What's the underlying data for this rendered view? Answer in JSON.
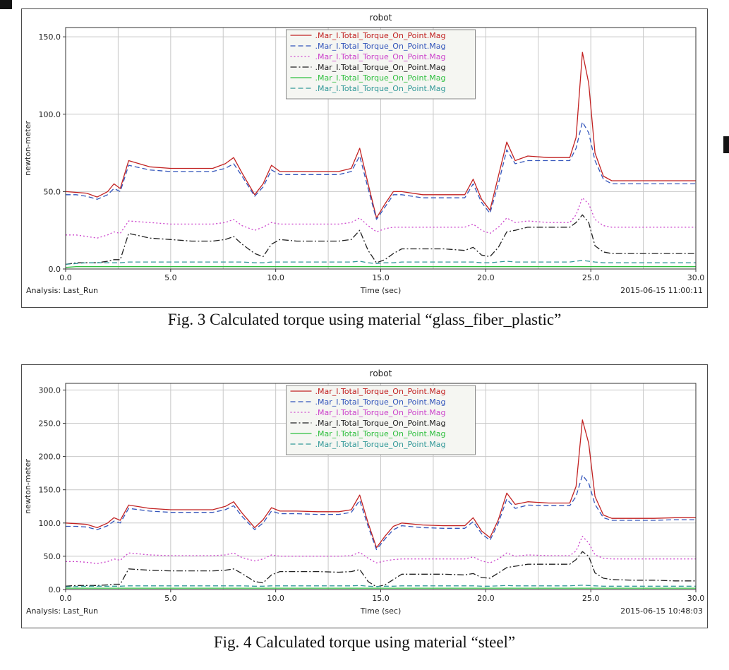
{
  "chart_data": [
    {
      "type": "line",
      "title": "robot",
      "xlabel": "Time (sec)",
      "ylabel": "newton-meter",
      "analysis_label": "Analysis:  Last_Run",
      "timestamp": "2015-06-15 11:00:11",
      "caption": "Fig. 3 Calculated torque using material “glass_fiber_plastic”",
      "xlim": [
        0,
        30
      ],
      "ylim": [
        0,
        156
      ],
      "x_ticks": [
        0,
        5,
        10,
        15,
        20,
        25,
        30
      ],
      "y_ticks": [
        0,
        50,
        100,
        150
      ],
      "x_grid_step": 2.5,
      "grid": true,
      "legend_position": "top-center",
      "x": [
        0,
        0.5,
        1,
        1.5,
        2,
        2.3,
        2.6,
        3,
        4,
        5,
        6,
        7,
        7.6,
        8,
        8.4,
        9,
        9.4,
        9.8,
        10.2,
        11,
        12,
        13,
        13.6,
        14,
        14.4,
        14.8,
        15.2,
        15.6,
        16,
        17,
        18,
        19,
        19.4,
        19.8,
        20.2,
        20.6,
        21,
        21.4,
        22,
        23,
        24,
        24.3,
        24.6,
        24.9,
        25.2,
        25.6,
        26,
        27,
        28,
        29,
        30
      ],
      "series": [
        {
          "name": ".Mar_I.Total_Torque_On_Point.Mag",
          "color": "#c22222",
          "dash": "solid",
          "values": [
            50,
            49.5,
            49,
            46.5,
            50,
            55,
            52,
            70,
            66,
            65,
            65,
            65,
            68,
            72,
            62,
            48,
            55,
            67,
            63,
            63,
            63,
            63,
            65,
            78,
            55,
            33,
            42,
            50,
            50,
            48,
            48,
            48,
            58,
            45,
            38,
            60,
            82,
            70,
            73,
            72,
            72,
            85,
            140,
            120,
            75,
            60,
            57,
            57,
            57,
            57,
            57
          ]
        },
        {
          "name": ".Mar_I.Total_Torque_On_Point.Mag",
          "color": "#3355bb",
          "dash": "dashed",
          "values": [
            48,
            48,
            47,
            45,
            48,
            52,
            50,
            67,
            64,
            63,
            63,
            63,
            65,
            68,
            60,
            47,
            53,
            64,
            61,
            61,
            61,
            61,
            63,
            73,
            52,
            32,
            40,
            48,
            48,
            46,
            46,
            46,
            55,
            43,
            36,
            55,
            77,
            68,
            70,
            70,
            70,
            78,
            95,
            88,
            70,
            58,
            55,
            55,
            55,
            55,
            55
          ]
        },
        {
          "name": ".Mar_I.Total_Torque_On_Point.Mag",
          "color": "#cc44cc",
          "dash": "dotted",
          "values": [
            22,
            22,
            21,
            20,
            22,
            24,
            23,
            31,
            30,
            29,
            29,
            29,
            30,
            32,
            28,
            25,
            27,
            30,
            29,
            29,
            29,
            29,
            30,
            33,
            28,
            24,
            26,
            27,
            27,
            27,
            27,
            27,
            29,
            25,
            23,
            27,
            33,
            30,
            31,
            30,
            30,
            35,
            46,
            42,
            32,
            28,
            27,
            27,
            27,
            27,
            27
          ]
        },
        {
          "name": ".Mar_I.Total_Torque_On_Point.Mag",
          "color": "#222222",
          "dash": "dashdot",
          "values": [
            3,
            4,
            4,
            4,
            5,
            6,
            6,
            23,
            20,
            19,
            18,
            18,
            19,
            21,
            16,
            10,
            8,
            16,
            19,
            18,
            18,
            18,
            19,
            25,
            12,
            4,
            6,
            10,
            13,
            13,
            13,
            12,
            14,
            9,
            8,
            14,
            24,
            25,
            27,
            27,
            27,
            30,
            35,
            30,
            15,
            11,
            10,
            10,
            10,
            10,
            10
          ]
        },
        {
          "name": ".Mar_I.Total_Torque_On_Point.Mag",
          "color": "#2fbf3f",
          "dash": "solid",
          "values": [
            1,
            1.5,
            1.5,
            1.5,
            1.5,
            1.5,
            1.5,
            1.5,
            1.5,
            1.5,
            1.5,
            1.5,
            1.5,
            1.5,
            1.5,
            1.5,
            1.5,
            1.5,
            1.5,
            1.5,
            1.5,
            1.5,
            1.5,
            1.5,
            1.5,
            1.5,
            1.5,
            1.5,
            1.5,
            1.5,
            1.5,
            1.5,
            1.5,
            1.5,
            1.5,
            1.5,
            1.5,
            1.5,
            1.5,
            1.5,
            1.5,
            1.5,
            1.5,
            1.5,
            1.5,
            1.5,
            1.5,
            1.5,
            1.5,
            1.5,
            1.5
          ]
        },
        {
          "name": ".Mar_I.Total_Torque_On_Point.Mag",
          "color": "#339999",
          "dash": "dashed",
          "values": [
            3,
            3.5,
            4,
            4,
            4,
            4,
            4,
            4.5,
            4.5,
            4.5,
            4.5,
            4.5,
            4.5,
            4.5,
            4.5,
            4,
            4,
            4.5,
            4.5,
            4.5,
            4.5,
            4.5,
            4.5,
            5,
            4,
            3.5,
            4,
            4,
            4.5,
            4.5,
            4.5,
            4.5,
            4.5,
            4,
            4,
            4.5,
            5,
            4.5,
            4.5,
            4.5,
            4.5,
            5,
            5.5,
            5,
            4.5,
            4,
            4,
            4,
            4,
            4,
            4
          ]
        }
      ]
    },
    {
      "type": "line",
      "title": "robot",
      "xlabel": "Time (sec)",
      "ylabel": "newton-meter",
      "analysis_label": "Analysis:  Last_Run",
      "timestamp": "2015-06-15 10:48:03",
      "caption": "Fig. 4 Calculated torque using material “steel”",
      "xlim": [
        0,
        30
      ],
      "ylim": [
        0,
        310
      ],
      "x_ticks": [
        0,
        5,
        10,
        15,
        20,
        25,
        30
      ],
      "y_ticks": [
        0,
        50,
        100,
        150,
        200,
        250,
        300
      ],
      "x_grid_step": 2.5,
      "grid": true,
      "legend_position": "top-center",
      "x": [
        0,
        0.5,
        1,
        1.5,
        2,
        2.3,
        2.6,
        3,
        4,
        5,
        6,
        7,
        7.6,
        8,
        8.4,
        9,
        9.4,
        9.8,
        10.2,
        11,
        12,
        13,
        13.6,
        14,
        14.4,
        14.8,
        15.2,
        15.6,
        16,
        17,
        18,
        19,
        19.4,
        19.8,
        20.2,
        20.6,
        21,
        21.4,
        22,
        23,
        24,
        24.3,
        24.6,
        24.9,
        25.2,
        25.6,
        26,
        27,
        28,
        29,
        30
      ],
      "series": [
        {
          "name": ".Mar_I.Total_Torque_On_Point.Mag",
          "color": "#c22222",
          "dash": "solid",
          "values": [
            100,
            99,
            98,
            93,
            100,
            108,
            104,
            127,
            122,
            120,
            120,
            120,
            125,
            132,
            115,
            93,
            105,
            123,
            118,
            118,
            117,
            117,
            120,
            142,
            100,
            63,
            80,
            95,
            100,
            97,
            96,
            96,
            108,
            88,
            78,
            105,
            145,
            128,
            132,
            130,
            130,
            155,
            255,
            220,
            140,
            112,
            107,
            107,
            107,
            108,
            108
          ]
        },
        {
          "name": ".Mar_I.Total_Torque_On_Point.Mag",
          "color": "#3355bb",
          "dash": "dashed",
          "values": [
            95,
            95,
            94,
            90,
            96,
            103,
            100,
            122,
            118,
            116,
            116,
            116,
            120,
            126,
            110,
            90,
            100,
            118,
            114,
            114,
            113,
            113,
            116,
            134,
            95,
            60,
            76,
            90,
            96,
            93,
            92,
            92,
            102,
            84,
            74,
            100,
            136,
            122,
            127,
            126,
            126,
            140,
            172,
            160,
            128,
            108,
            104,
            104,
            104,
            105,
            105
          ]
        },
        {
          "name": ".Mar_I.Total_Torque_On_Point.Mag",
          "color": "#cc44cc",
          "dash": "dotted",
          "values": [
            42,
            42,
            41,
            39,
            42,
            46,
            44,
            55,
            52,
            51,
            51,
            51,
            52,
            55,
            48,
            43,
            46,
            52,
            50,
            50,
            50,
            50,
            51,
            56,
            47,
            40,
            43,
            45,
            46,
            46,
            46,
            46,
            49,
            43,
            40,
            46,
            55,
            50,
            52,
            51,
            51,
            58,
            80,
            70,
            52,
            47,
            46,
            46,
            46,
            46,
            46
          ]
        },
        {
          "name": ".Mar_I.Total_Torque_On_Point.Mag",
          "color": "#222222",
          "dash": "dashdot",
          "values": [
            5,
            6,
            6,
            6,
            7,
            8,
            8,
            31,
            29,
            28,
            28,
            28,
            29,
            31,
            24,
            12,
            10,
            22,
            27,
            27,
            27,
            26,
            27,
            30,
            12,
            4,
            7,
            15,
            23,
            23,
            23,
            22,
            24,
            18,
            17,
            25,
            33,
            35,
            38,
            38,
            38,
            45,
            57,
            50,
            25,
            17,
            15,
            14,
            14,
            13,
            13
          ]
        },
        {
          "name": ".Mar_I.Total_Torque_On_Point.Mag",
          "color": "#2fbf3f",
          "dash": "solid",
          "values": [
            2,
            2,
            2,
            2,
            2,
            2,
            2,
            2,
            2,
            2,
            2,
            2,
            2,
            2,
            2,
            2,
            2,
            2,
            2,
            2,
            2,
            2,
            2,
            2,
            2,
            2,
            2,
            2,
            2,
            2,
            2,
            2,
            2,
            2,
            2,
            2,
            2,
            2,
            2,
            2,
            2,
            2,
            2,
            2,
            2,
            2,
            2,
            2,
            2,
            2,
            2
          ]
        },
        {
          "name": ".Mar_I.Total_Torque_On_Point.Mag",
          "color": "#339999",
          "dash": "dashed",
          "values": [
            4,
            4.5,
            5,
            5,
            5,
            5,
            5,
            5.5,
            5.5,
            5.5,
            5.5,
            5.5,
            5.5,
            5.5,
            5.5,
            5,
            5,
            5.5,
            5.5,
            5.5,
            5.5,
            5.5,
            5.5,
            6,
            5,
            4.5,
            5,
            5,
            5.5,
            5.5,
            5.5,
            5.5,
            5.5,
            5,
            5,
            5.5,
            6,
            5.5,
            5.5,
            5.5,
            5.5,
            6,
            6.5,
            6,
            5.5,
            5,
            5,
            5,
            5,
            5,
            5
          ]
        }
      ]
    }
  ]
}
